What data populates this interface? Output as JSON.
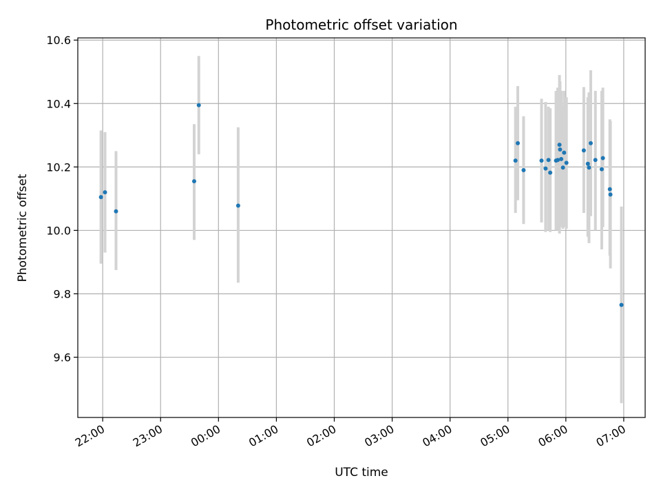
{
  "chart_data": {
    "type": "scatter",
    "title": "Photometric offset variation",
    "xlabel": "UTC time",
    "ylabel": "Photometric offset",
    "x_axis": "time (hours; 0 = 00:00 UTC, negative = previous evening)",
    "xlim": [
      -2.43,
      7.37
    ],
    "ylim": [
      9.41,
      10.607
    ],
    "x_ticks": [
      {
        "value": -2,
        "label": "22:00"
      },
      {
        "value": -1,
        "label": "23:00"
      },
      {
        "value": 0,
        "label": "00:00"
      },
      {
        "value": 1,
        "label": "01:00"
      },
      {
        "value": 2,
        "label": "02:00"
      },
      {
        "value": 3,
        "label": "03:00"
      },
      {
        "value": 4,
        "label": "04:00"
      },
      {
        "value": 5,
        "label": "05:00"
      },
      {
        "value": 6,
        "label": "06:00"
      },
      {
        "value": 7,
        "label": "07:00"
      }
    ],
    "y_ticks": [
      {
        "value": 9.6,
        "label": "9.6"
      },
      {
        "value": 9.8,
        "label": "9.8"
      },
      {
        "value": 10.0,
        "label": "10.0"
      },
      {
        "value": 10.2,
        "label": "10.2"
      },
      {
        "value": 10.4,
        "label": "10.4"
      },
      {
        "value": 10.6,
        "label": "10.6"
      }
    ],
    "grid": true,
    "marker_color": "#1f77b4",
    "errorbar_color": "#d3d3d3",
    "points": [
      {
        "x": -2.03,
        "y": 10.105,
        "lo": 9.895,
        "hi": 10.315
      },
      {
        "x": -1.96,
        "y": 10.12,
        "lo": 9.93,
        "hi": 10.31
      },
      {
        "x": -1.77,
        "y": 10.06,
        "lo": 9.875,
        "hi": 10.25
      },
      {
        "x": -0.42,
        "y": 10.155,
        "lo": 9.97,
        "hi": 10.335
      },
      {
        "x": -0.34,
        "y": 10.395,
        "lo": 10.24,
        "hi": 10.55
      },
      {
        "x": 0.34,
        "y": 10.078,
        "lo": 9.835,
        "hi": 10.325
      },
      {
        "x": 5.13,
        "y": 10.22,
        "lo": 10.055,
        "hi": 10.39
      },
      {
        "x": 5.17,
        "y": 10.275,
        "lo": 10.095,
        "hi": 10.455
      },
      {
        "x": 5.27,
        "y": 10.19,
        "lo": 10.02,
        "hi": 10.36
      },
      {
        "x": 5.58,
        "y": 10.22,
        "lo": 10.025,
        "hi": 10.415
      },
      {
        "x": 5.65,
        "y": 10.195,
        "lo": 9.995,
        "hi": 10.405
      },
      {
        "x": 5.7,
        "y": 10.222,
        "lo": 10.0,
        "hi": 10.39
      },
      {
        "x": 5.73,
        "y": 10.182,
        "lo": 9.995,
        "hi": 10.385
      },
      {
        "x": 5.83,
        "y": 10.22,
        "lo": 10.0,
        "hi": 10.44
      },
      {
        "x": 5.86,
        "y": 10.222,
        "lo": 10.0,
        "hi": 10.45
      },
      {
        "x": 5.89,
        "y": 10.27,
        "lo": 9.99,
        "hi": 10.49
      },
      {
        "x": 5.9,
        "y": 10.255,
        "lo": 10.03,
        "hi": 10.47
      },
      {
        "x": 5.92,
        "y": 10.225,
        "lo": 10.01,
        "hi": 10.44
      },
      {
        "x": 5.95,
        "y": 10.198,
        "lo": 10.005,
        "hi": 10.395
      },
      {
        "x": 5.97,
        "y": 10.245,
        "lo": 10.01,
        "hi": 10.44
      },
      {
        "x": 6.01,
        "y": 10.213,
        "lo": 10.005,
        "hi": 10.42
      },
      {
        "x": 6.31,
        "y": 10.252,
        "lo": 10.055,
        "hi": 10.452
      },
      {
        "x": 6.38,
        "y": 10.21,
        "lo": 9.98,
        "hi": 10.42
      },
      {
        "x": 6.4,
        "y": 10.198,
        "lo": 9.96,
        "hi": 10.435
      },
      {
        "x": 6.43,
        "y": 10.275,
        "lo": 10.045,
        "hi": 10.505
      },
      {
        "x": 6.51,
        "y": 10.222,
        "lo": 10.0,
        "hi": 10.44
      },
      {
        "x": 6.62,
        "y": 10.193,
        "lo": 9.94,
        "hi": 10.44
      },
      {
        "x": 6.64,
        "y": 10.228,
        "lo": 10.01,
        "hi": 10.45
      },
      {
        "x": 6.76,
        "y": 10.13,
        "lo": 9.92,
        "hi": 10.35
      },
      {
        "x": 6.77,
        "y": 10.113,
        "lo": 9.88,
        "hi": 10.345
      },
      {
        "x": 6.96,
        "y": 9.765,
        "lo": 9.455,
        "hi": 10.075
      }
    ]
  }
}
